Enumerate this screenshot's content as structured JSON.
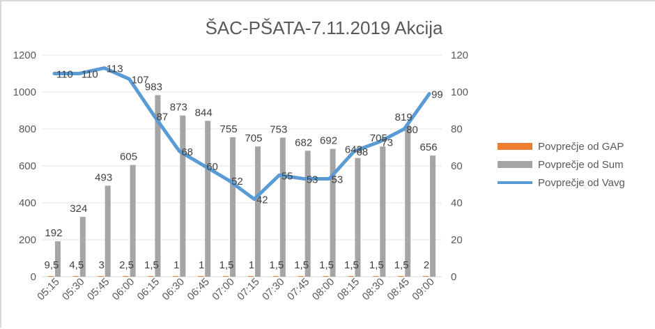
{
  "chart_data": {
    "type": "bar+line",
    "title": "ŠAC-PŠATA-7.11.2019 Akcija",
    "categories": [
      "05:15",
      "05:30",
      "05:45",
      "06:00",
      "06:15",
      "06:30",
      "06:45",
      "07:00",
      "07:15",
      "07:30",
      "07:45",
      "08:00",
      "08:15",
      "08:30",
      "08:45",
      "09:00"
    ],
    "series": [
      {
        "name": "Povprečje od GAP",
        "type": "bar",
        "axis": "secondary",
        "color": "#ED7D31",
        "values": [
          9.5,
          4.5,
          3,
          2.5,
          1.5,
          1,
          1,
          1.5,
          1,
          1.5,
          1.5,
          1.5,
          1.5,
          1.5,
          1.5,
          2
        ],
        "labels": [
          "9,5",
          "4,5",
          "3",
          "2,5",
          "1,5",
          "1",
          "1",
          "1,5",
          "1",
          "1,5",
          "1,5",
          "1,5",
          "1,5",
          "1,5",
          "1,5",
          "2"
        ]
      },
      {
        "name": "Povprečje od Sum",
        "type": "bar",
        "axis": "primary",
        "color": "#A5A5A5",
        "values": [
          192,
          324,
          493,
          605,
          983,
          873,
          844,
          755,
          705,
          753,
          682,
          692,
          643,
          705,
          819,
          656
        ]
      },
      {
        "name": "Povprečje od Vavg",
        "type": "line",
        "axis": "secondary",
        "color": "#5B9BD5",
        "values": [
          110,
          110,
          113,
          107,
          87,
          68,
          60,
          52,
          42,
          55,
          53,
          53,
          68,
          73,
          80,
          99
        ]
      }
    ],
    "primary_axis": {
      "ylim": [
        0,
        1200
      ],
      "ticks": [
        0,
        200,
        400,
        600,
        800,
        1000,
        1200
      ]
    },
    "secondary_axis": {
      "ylim": [
        0,
        120
      ],
      "ticks": [
        0,
        20,
        40,
        60,
        80,
        100,
        120
      ]
    },
    "xlabel": "",
    "ylabel": "",
    "grid": true,
    "legend_position": "right"
  },
  "legend": {
    "items": [
      {
        "label": "Povprečje od GAP",
        "color": "#ED7D31"
      },
      {
        "label": "Povprečje od Sum",
        "color": "#A5A5A5"
      },
      {
        "label": "Povprečje od Vavg",
        "color": "#5B9BD5"
      }
    ]
  }
}
